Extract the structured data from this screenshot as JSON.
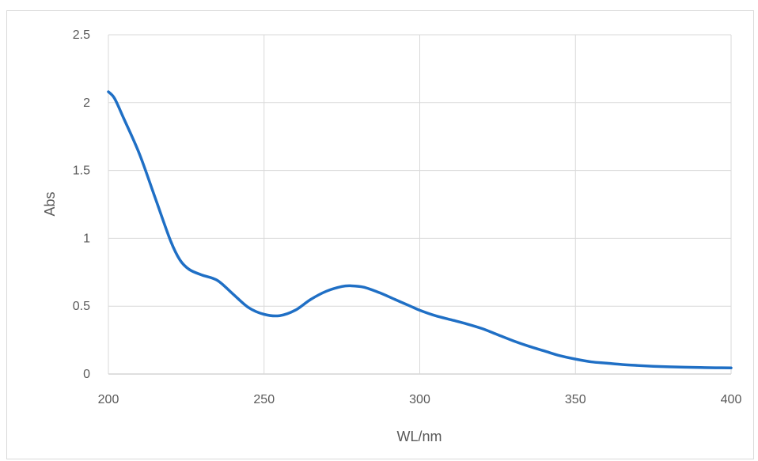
{
  "chart_data": {
    "type": "line",
    "xlabel": "WL/nm",
    "ylabel": "Abs",
    "xlim": [
      200,
      400
    ],
    "ylim": [
      0,
      2.5
    ],
    "x_ticks": [
      "200",
      "250",
      "300",
      "350",
      "400"
    ],
    "y_ticks": [
      "0",
      "0.5",
      "1",
      "1.5",
      "2",
      "2.5"
    ],
    "grid": true,
    "legend": "none",
    "series": [
      {
        "color": "#1f6fc5",
        "x": [
          200,
          202,
          205,
          210,
          215,
          220,
          223,
          226,
          230,
          235,
          240,
          245,
          250,
          255,
          260,
          265,
          270,
          275,
          278,
          282,
          287,
          292,
          297,
          300,
          305,
          310,
          315,
          320,
          325,
          330,
          335,
          340,
          345,
          350,
          355,
          360,
          365,
          370,
          375,
          380,
          385,
          390,
          395,
          400
        ],
        "y": [
          2.08,
          2.03,
          1.88,
          1.62,
          1.3,
          0.98,
          0.84,
          0.77,
          0.73,
          0.69,
          0.59,
          0.49,
          0.44,
          0.43,
          0.47,
          0.55,
          0.61,
          0.645,
          0.65,
          0.64,
          0.6,
          0.55,
          0.5,
          0.47,
          0.43,
          0.4,
          0.37,
          0.335,
          0.29,
          0.245,
          0.205,
          0.17,
          0.135,
          0.11,
          0.09,
          0.08,
          0.07,
          0.063,
          0.057,
          0.053,
          0.05,
          0.048,
          0.046,
          0.045
        ]
      }
    ]
  }
}
